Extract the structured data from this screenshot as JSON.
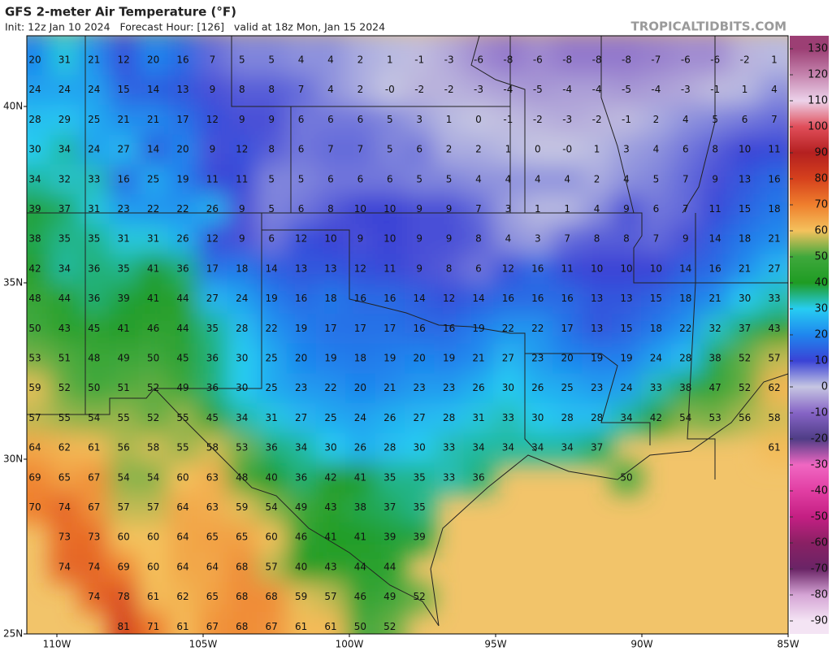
{
  "header": {
    "title": "GFS 2-meter Air Temperature (°F)",
    "subtitle": "Init: 12z Jan 10 2024   Forecast Hour: [126]   valid at 18z Mon, Jan 15 2024",
    "watermark": "TROPICALTIDBITS.COM"
  },
  "lat_labels": [
    "40N",
    "35N",
    "30N",
    "25N"
  ],
  "lon_labels": [
    "110W",
    "105W",
    "100W",
    "95W",
    "90W",
    "85W"
  ],
  "colorbar": {
    "ticks": [
      130,
      120,
      110,
      100,
      90,
      80,
      70,
      60,
      50,
      40,
      30,
      20,
      10,
      0,
      -10,
      -20,
      -30,
      -40,
      -50,
      -60,
      -70,
      -80,
      -90
    ],
    "colors": [
      "#9c3f74",
      "#c584ae",
      "#ecd2ea",
      "#e04e5a",
      "#b42020",
      "#d6411d",
      "#ef7f2d",
      "#f4c25d",
      "#3fa83c",
      "#1f9c23",
      "#27cdf2",
      "#1f86ee",
      "#3a43d6",
      "#c6c6e2",
      "#8664c6",
      "#4f3d86",
      "#f067c2",
      "#e13ea3",
      "#c41f83",
      "#8a2064",
      "#6a2466",
      "#d5a4d5",
      "#f4e4f4"
    ]
  },
  "grid": {
    "rows": [
      [
        "20",
        "31",
        "21",
        "12",
        "20",
        "16",
        "7",
        "5",
        "5",
        "4",
        "4",
        "2",
        "1",
        "-1",
        "-3",
        "-6",
        "-8",
        "-6",
        "-8",
        "-8",
        "-8",
        "-7",
        "-6",
        "-6",
        "-2",
        "1"
      ],
      [
        "24",
        "24",
        "24",
        "15",
        "14",
        "13",
        "9",
        "8",
        "8",
        "7",
        "4",
        "2",
        "-0",
        "-2",
        "-2",
        "-3",
        "-4",
        "-5",
        "-4",
        "-4",
        "-5",
        "-4",
        "-3",
        "-1",
        "1",
        "4"
      ],
      [
        "28",
        "29",
        "25",
        "21",
        "21",
        "17",
        "12",
        "9",
        "9",
        "6",
        "6",
        "6",
        "5",
        "3",
        "1",
        "0",
        "-1",
        "-2",
        "-3",
        "-2",
        "-1",
        "2",
        "4",
        "5",
        "6",
        "7"
      ],
      [
        "30",
        "34",
        "24",
        "27",
        "14",
        "20",
        "9",
        "12",
        "8",
        "6",
        "7",
        "7",
        "5",
        "6",
        "2",
        "2",
        "1",
        "0",
        "-0",
        "1",
        "3",
        "4",
        "6",
        "8",
        "10",
        "11"
      ],
      [
        "34",
        "32",
        "33",
        "16",
        "25",
        "19",
        "11",
        "11",
        "5",
        "5",
        "6",
        "6",
        "6",
        "5",
        "5",
        "4",
        "4",
        "4",
        "4",
        "2",
        "4",
        "5",
        "7",
        "9",
        "13",
        "16"
      ],
      [
        "39",
        "37",
        "31",
        "23",
        "22",
        "22",
        "26",
        "9",
        "5",
        "6",
        "8",
        "10",
        "10",
        "9",
        "9",
        "7",
        "3",
        "1",
        "1",
        "4",
        "9",
        "6",
        "7",
        "11",
        "15",
        "18"
      ],
      [
        "38",
        "35",
        "35",
        "31",
        "31",
        "26",
        "12",
        "9",
        "6",
        "12",
        "10",
        "9",
        "10",
        "9",
        "9",
        "8",
        "4",
        "3",
        "7",
        "8",
        "8",
        "7",
        "9",
        "14",
        "18",
        "21"
      ],
      [
        "42",
        "34",
        "36",
        "35",
        "41",
        "36",
        "17",
        "18",
        "14",
        "13",
        "13",
        "12",
        "11",
        "9",
        "8",
        "6",
        "12",
        "16",
        "11",
        "10",
        "10",
        "10",
        "14",
        "16",
        "21",
        "27"
      ],
      [
        "48",
        "44",
        "36",
        "39",
        "41",
        "44",
        "27",
        "24",
        "19",
        "16",
        "18",
        "16",
        "16",
        "14",
        "12",
        "14",
        "16",
        "16",
        "16",
        "13",
        "13",
        "15",
        "18",
        "21",
        "30",
        "33"
      ],
      [
        "50",
        "43",
        "45",
        "41",
        "46",
        "44",
        "35",
        "28",
        "22",
        "19",
        "17",
        "17",
        "17",
        "16",
        "16",
        "19",
        "22",
        "22",
        "17",
        "13",
        "15",
        "18",
        "22",
        "32",
        "37",
        "43"
      ],
      [
        "53",
        "51",
        "48",
        "49",
        "50",
        "45",
        "36",
        "30",
        "25",
        "20",
        "19",
        "18",
        "19",
        "20",
        "19",
        "21",
        "27",
        "23",
        "20",
        "19",
        "19",
        "24",
        "28",
        "38",
        "52",
        "57"
      ],
      [
        "59",
        "52",
        "50",
        "51",
        "52",
        "49",
        "36",
        "30",
        "25",
        "23",
        "22",
        "20",
        "21",
        "23",
        "23",
        "26",
        "30",
        "26",
        "25",
        "23",
        "24",
        "33",
        "38",
        "47",
        "52",
        "62"
      ],
      [
        "57",
        "55",
        "54",
        "55",
        "52",
        "55",
        "45",
        "34",
        "31",
        "27",
        "25",
        "24",
        "26",
        "27",
        "28",
        "31",
        "33",
        "30",
        "28",
        "28",
        "34",
        "42",
        "54",
        "53",
        "56",
        "58"
      ],
      [
        "64",
        "62",
        "61",
        "56",
        "58",
        "55",
        "58",
        "53",
        "36",
        "34",
        "30",
        "26",
        "28",
        "30",
        "33",
        "34",
        "34",
        "34",
        "34",
        "37",
        null,
        null,
        null,
        null,
        null,
        "61"
      ],
      [
        "69",
        "65",
        "67",
        "54",
        "54",
        "60",
        "63",
        "48",
        "40",
        "36",
        "42",
        "41",
        "35",
        "35",
        "33",
        "36",
        null,
        null,
        null,
        null,
        "50",
        null,
        null,
        null,
        null,
        null
      ],
      [
        "70",
        "74",
        "67",
        "57",
        "57",
        "64",
        "63",
        "59",
        "54",
        "49",
        "43",
        "38",
        "37",
        "35",
        null,
        null,
        null,
        null,
        null,
        null,
        null,
        null,
        null,
        null,
        null,
        null
      ],
      [
        null,
        "73",
        "73",
        "60",
        "60",
        "64",
        "65",
        "65",
        "60",
        "46",
        "41",
        "41",
        "39",
        "39",
        null,
        null,
        null,
        null,
        null,
        null,
        null,
        null,
        null,
        null,
        null,
        null
      ],
      [
        null,
        "74",
        "74",
        "69",
        "60",
        "64",
        "64",
        "68",
        "57",
        "40",
        "43",
        "44",
        "44",
        null,
        null,
        null,
        null,
        null,
        null,
        null,
        null,
        null,
        null,
        null,
        null,
        null
      ],
      [
        null,
        null,
        "74",
        "78",
        "61",
        "62",
        "65",
        "68",
        "68",
        "59",
        "57",
        "46",
        "49",
        "52",
        null,
        null,
        null,
        null,
        null,
        null,
        null,
        null,
        null,
        null,
        null,
        null
      ],
      [
        null,
        null,
        null,
        "81",
        "71",
        "61",
        "67",
        "68",
        "67",
        "61",
        "61",
        "50",
        "52",
        null,
        null,
        null,
        null,
        null,
        null,
        null,
        null,
        null,
        null,
        null,
        null,
        null
      ]
    ]
  }
}
